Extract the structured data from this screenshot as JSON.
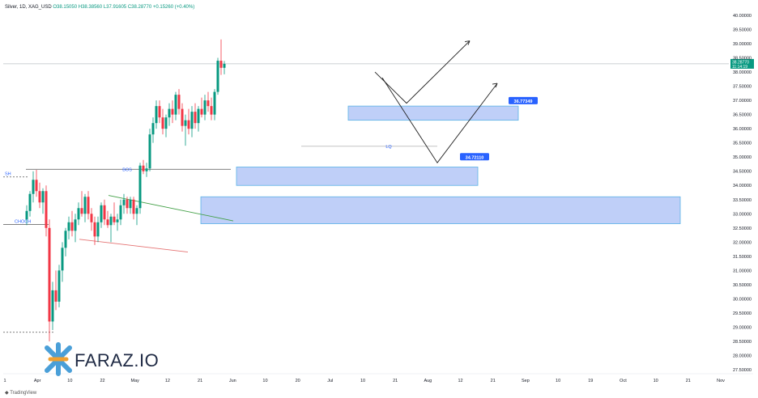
{
  "header": {
    "symbol": "Silver, 1D, XAG_USD",
    "open": "O38.15050",
    "high": "H38.38560",
    "low": "L37.91605",
    "close": "C38.28770",
    "change": "+0.15260 (+0.40%)"
  },
  "footer": {
    "brand": "TradingView"
  },
  "logo": {
    "text": "FARAZ.IO"
  },
  "colors": {
    "up": "#089981",
    "down": "#f23645",
    "zone_fill": "#9db6f5",
    "zone_stroke": "#2962ff",
    "label_bg": "#2962ff"
  },
  "chart_data": {
    "type": "candlestick",
    "y_axis": {
      "min": 27.5,
      "max": 40.0,
      "step": 0.5,
      "position": "right",
      "tick_labels": [
        "40.00000",
        "39.50000",
        "39.00000",
        "38.50000",
        "38.00000",
        "37.50000",
        "37.00000",
        "36.50000",
        "36.00000",
        "35.50000",
        "35.00000",
        "34.50000",
        "34.00000",
        "33.50000",
        "33.00000",
        "32.50000",
        "32.00000",
        "31.50000",
        "31.00000",
        "30.50000",
        "30.00000",
        "29.50000",
        "29.00000",
        "28.50000",
        "28.00000",
        "27.50000"
      ]
    },
    "x_axis": {
      "tick_labels": [
        "1",
        "Apr",
        "10",
        "22",
        "May",
        "12",
        "21",
        "Jun",
        "10",
        "20",
        "Jul",
        "10",
        "21",
        "Aug",
        "12",
        "21",
        "Sep",
        "10",
        "19",
        "Oct",
        "10",
        "21",
        "Nov"
      ]
    },
    "last_price": {
      "value": "38.28770",
      "time": "11:14:19"
    },
    "annotations": {
      "sh": "SH",
      "choch": "CHOCH",
      "bos": "BOS",
      "lq": "LQ",
      "zone1_label": "36.77349",
      "zone2_label": "34.72110"
    },
    "levels": {
      "bos": 34.57,
      "sh": 34.3,
      "choch": 32.62,
      "low_dotted": 28.82,
      "lq": 35.38,
      "current": 38.29
    },
    "zones": [
      {
        "top": 36.8,
        "bottom": 36.3,
        "label": "36.77349"
      },
      {
        "top": 34.65,
        "bottom": 34.0,
        "label": "34.72110"
      },
      {
        "top": 33.6,
        "bottom": 32.65,
        "label": ""
      }
    ],
    "projection_paths": [
      [
        [
          0,
          38.0
        ],
        [
          0,
          37.0
        ],
        [
          0,
          37.6
        ]
      ],
      [
        [
          0,
          38.0
        ],
        [
          0,
          35.0
        ],
        [
          0,
          37.0
        ]
      ]
    ],
    "candles": [
      {
        "o": 32.8,
        "h": 33.3,
        "l": 32.6,
        "c": 33.1
      },
      {
        "o": 33.1,
        "h": 33.8,
        "l": 32.9,
        "c": 33.7
      },
      {
        "o": 33.7,
        "h": 34.5,
        "l": 33.4,
        "c": 34.2
      },
      {
        "o": 34.2,
        "h": 34.55,
        "l": 33.6,
        "c": 33.8
      },
      {
        "o": 33.8,
        "h": 34.1,
        "l": 33.2,
        "c": 33.4
      },
      {
        "o": 33.4,
        "h": 33.9,
        "l": 33.0,
        "c": 33.8
      },
      {
        "o": 33.8,
        "h": 34.0,
        "l": 32.2,
        "c": 32.5
      },
      {
        "o": 32.5,
        "h": 32.8,
        "l": 28.5,
        "c": 29.2
      },
      {
        "o": 29.2,
        "h": 30.6,
        "l": 28.9,
        "c": 30.3
      },
      {
        "o": 30.3,
        "h": 31.0,
        "l": 29.6,
        "c": 29.9
      },
      {
        "o": 29.9,
        "h": 31.2,
        "l": 29.7,
        "c": 31.0
      },
      {
        "o": 31.0,
        "h": 32.0,
        "l": 30.6,
        "c": 31.8
      },
      {
        "o": 31.8,
        "h": 32.5,
        "l": 31.5,
        "c": 32.4
      },
      {
        "o": 32.4,
        "h": 32.9,
        "l": 32.1,
        "c": 32.7
      },
      {
        "o": 32.7,
        "h": 33.1,
        "l": 32.2,
        "c": 32.4
      },
      {
        "o": 32.4,
        "h": 33.0,
        "l": 32.0,
        "c": 32.8
      },
      {
        "o": 32.8,
        "h": 33.4,
        "l": 32.6,
        "c": 33.2
      },
      {
        "o": 33.2,
        "h": 33.8,
        "l": 32.9,
        "c": 33.0
      },
      {
        "o": 33.0,
        "h": 33.7,
        "l": 32.7,
        "c": 33.6
      },
      {
        "o": 33.6,
        "h": 33.8,
        "l": 32.8,
        "c": 33.0
      },
      {
        "o": 33.0,
        "h": 33.2,
        "l": 32.4,
        "c": 32.7
      },
      {
        "o": 32.7,
        "h": 32.9,
        "l": 31.9,
        "c": 32.2
      },
      {
        "o": 32.2,
        "h": 32.9,
        "l": 32.0,
        "c": 32.7
      },
      {
        "o": 32.7,
        "h": 33.4,
        "l": 32.5,
        "c": 33.3
      },
      {
        "o": 33.3,
        "h": 33.5,
        "l": 32.6,
        "c": 32.8
      },
      {
        "o": 32.8,
        "h": 33.1,
        "l": 32.5,
        "c": 32.6
      },
      {
        "o": 32.6,
        "h": 33.0,
        "l": 32.0,
        "c": 32.9
      },
      {
        "o": 32.9,
        "h": 33.4,
        "l": 32.6,
        "c": 32.7
      },
      {
        "o": 32.7,
        "h": 33.0,
        "l": 32.4,
        "c": 32.8
      },
      {
        "o": 32.8,
        "h": 33.5,
        "l": 32.6,
        "c": 33.3
      },
      {
        "o": 33.3,
        "h": 33.7,
        "l": 33.0,
        "c": 33.5
      },
      {
        "o": 33.5,
        "h": 33.6,
        "l": 33.0,
        "c": 33.2
      },
      {
        "o": 33.2,
        "h": 33.6,
        "l": 33.0,
        "c": 33.5
      },
      {
        "o": 33.5,
        "h": 33.6,
        "l": 32.8,
        "c": 33.0
      },
      {
        "o": 33.0,
        "h": 33.3,
        "l": 32.6,
        "c": 33.2
      },
      {
        "o": 33.2,
        "h": 34.8,
        "l": 33.0,
        "c": 34.7
      },
      {
        "o": 34.7,
        "h": 34.9,
        "l": 34.4,
        "c": 34.5
      },
      {
        "o": 34.5,
        "h": 34.8,
        "l": 34.3,
        "c": 34.6
      },
      {
        "o": 34.6,
        "h": 36.0,
        "l": 34.5,
        "c": 35.8
      },
      {
        "o": 35.8,
        "h": 36.4,
        "l": 35.5,
        "c": 36.2
      },
      {
        "o": 36.2,
        "h": 37.0,
        "l": 36.0,
        "c": 36.8
      },
      {
        "o": 36.8,
        "h": 37.0,
        "l": 36.2,
        "c": 36.4
      },
      {
        "o": 36.4,
        "h": 36.7,
        "l": 35.8,
        "c": 36.0
      },
      {
        "o": 36.0,
        "h": 36.5,
        "l": 35.7,
        "c": 36.4
      },
      {
        "o": 36.4,
        "h": 36.9,
        "l": 36.1,
        "c": 36.7
      },
      {
        "o": 36.7,
        "h": 37.0,
        "l": 36.2,
        "c": 36.5
      },
      {
        "o": 36.5,
        "h": 37.3,
        "l": 36.3,
        "c": 37.2
      },
      {
        "o": 37.2,
        "h": 37.4,
        "l": 36.5,
        "c": 36.7
      },
      {
        "o": 36.7,
        "h": 36.9,
        "l": 35.9,
        "c": 36.1
      },
      {
        "o": 36.1,
        "h": 36.5,
        "l": 35.4,
        "c": 36.3
      },
      {
        "o": 36.3,
        "h": 36.7,
        "l": 35.8,
        "c": 36.0
      },
      {
        "o": 36.0,
        "h": 36.8,
        "l": 35.7,
        "c": 36.6
      },
      {
        "o": 36.6,
        "h": 36.9,
        "l": 36.0,
        "c": 36.2
      },
      {
        "o": 36.2,
        "h": 36.8,
        "l": 35.9,
        "c": 36.7
      },
      {
        "o": 36.7,
        "h": 37.1,
        "l": 36.4,
        "c": 36.5
      },
      {
        "o": 36.5,
        "h": 37.2,
        "l": 36.3,
        "c": 37.0
      },
      {
        "o": 37.0,
        "h": 37.3,
        "l": 36.6,
        "c": 36.8
      },
      {
        "o": 36.8,
        "h": 37.1,
        "l": 36.3,
        "c": 36.5
      },
      {
        "o": 36.5,
        "h": 37.4,
        "l": 36.3,
        "c": 37.3
      },
      {
        "o": 37.3,
        "h": 38.5,
        "l": 37.2,
        "c": 38.4
      },
      {
        "o": 38.4,
        "h": 39.15,
        "l": 37.9,
        "c": 38.15
      },
      {
        "o": 38.15,
        "h": 38.39,
        "l": 37.92,
        "c": 38.29
      }
    ]
  }
}
